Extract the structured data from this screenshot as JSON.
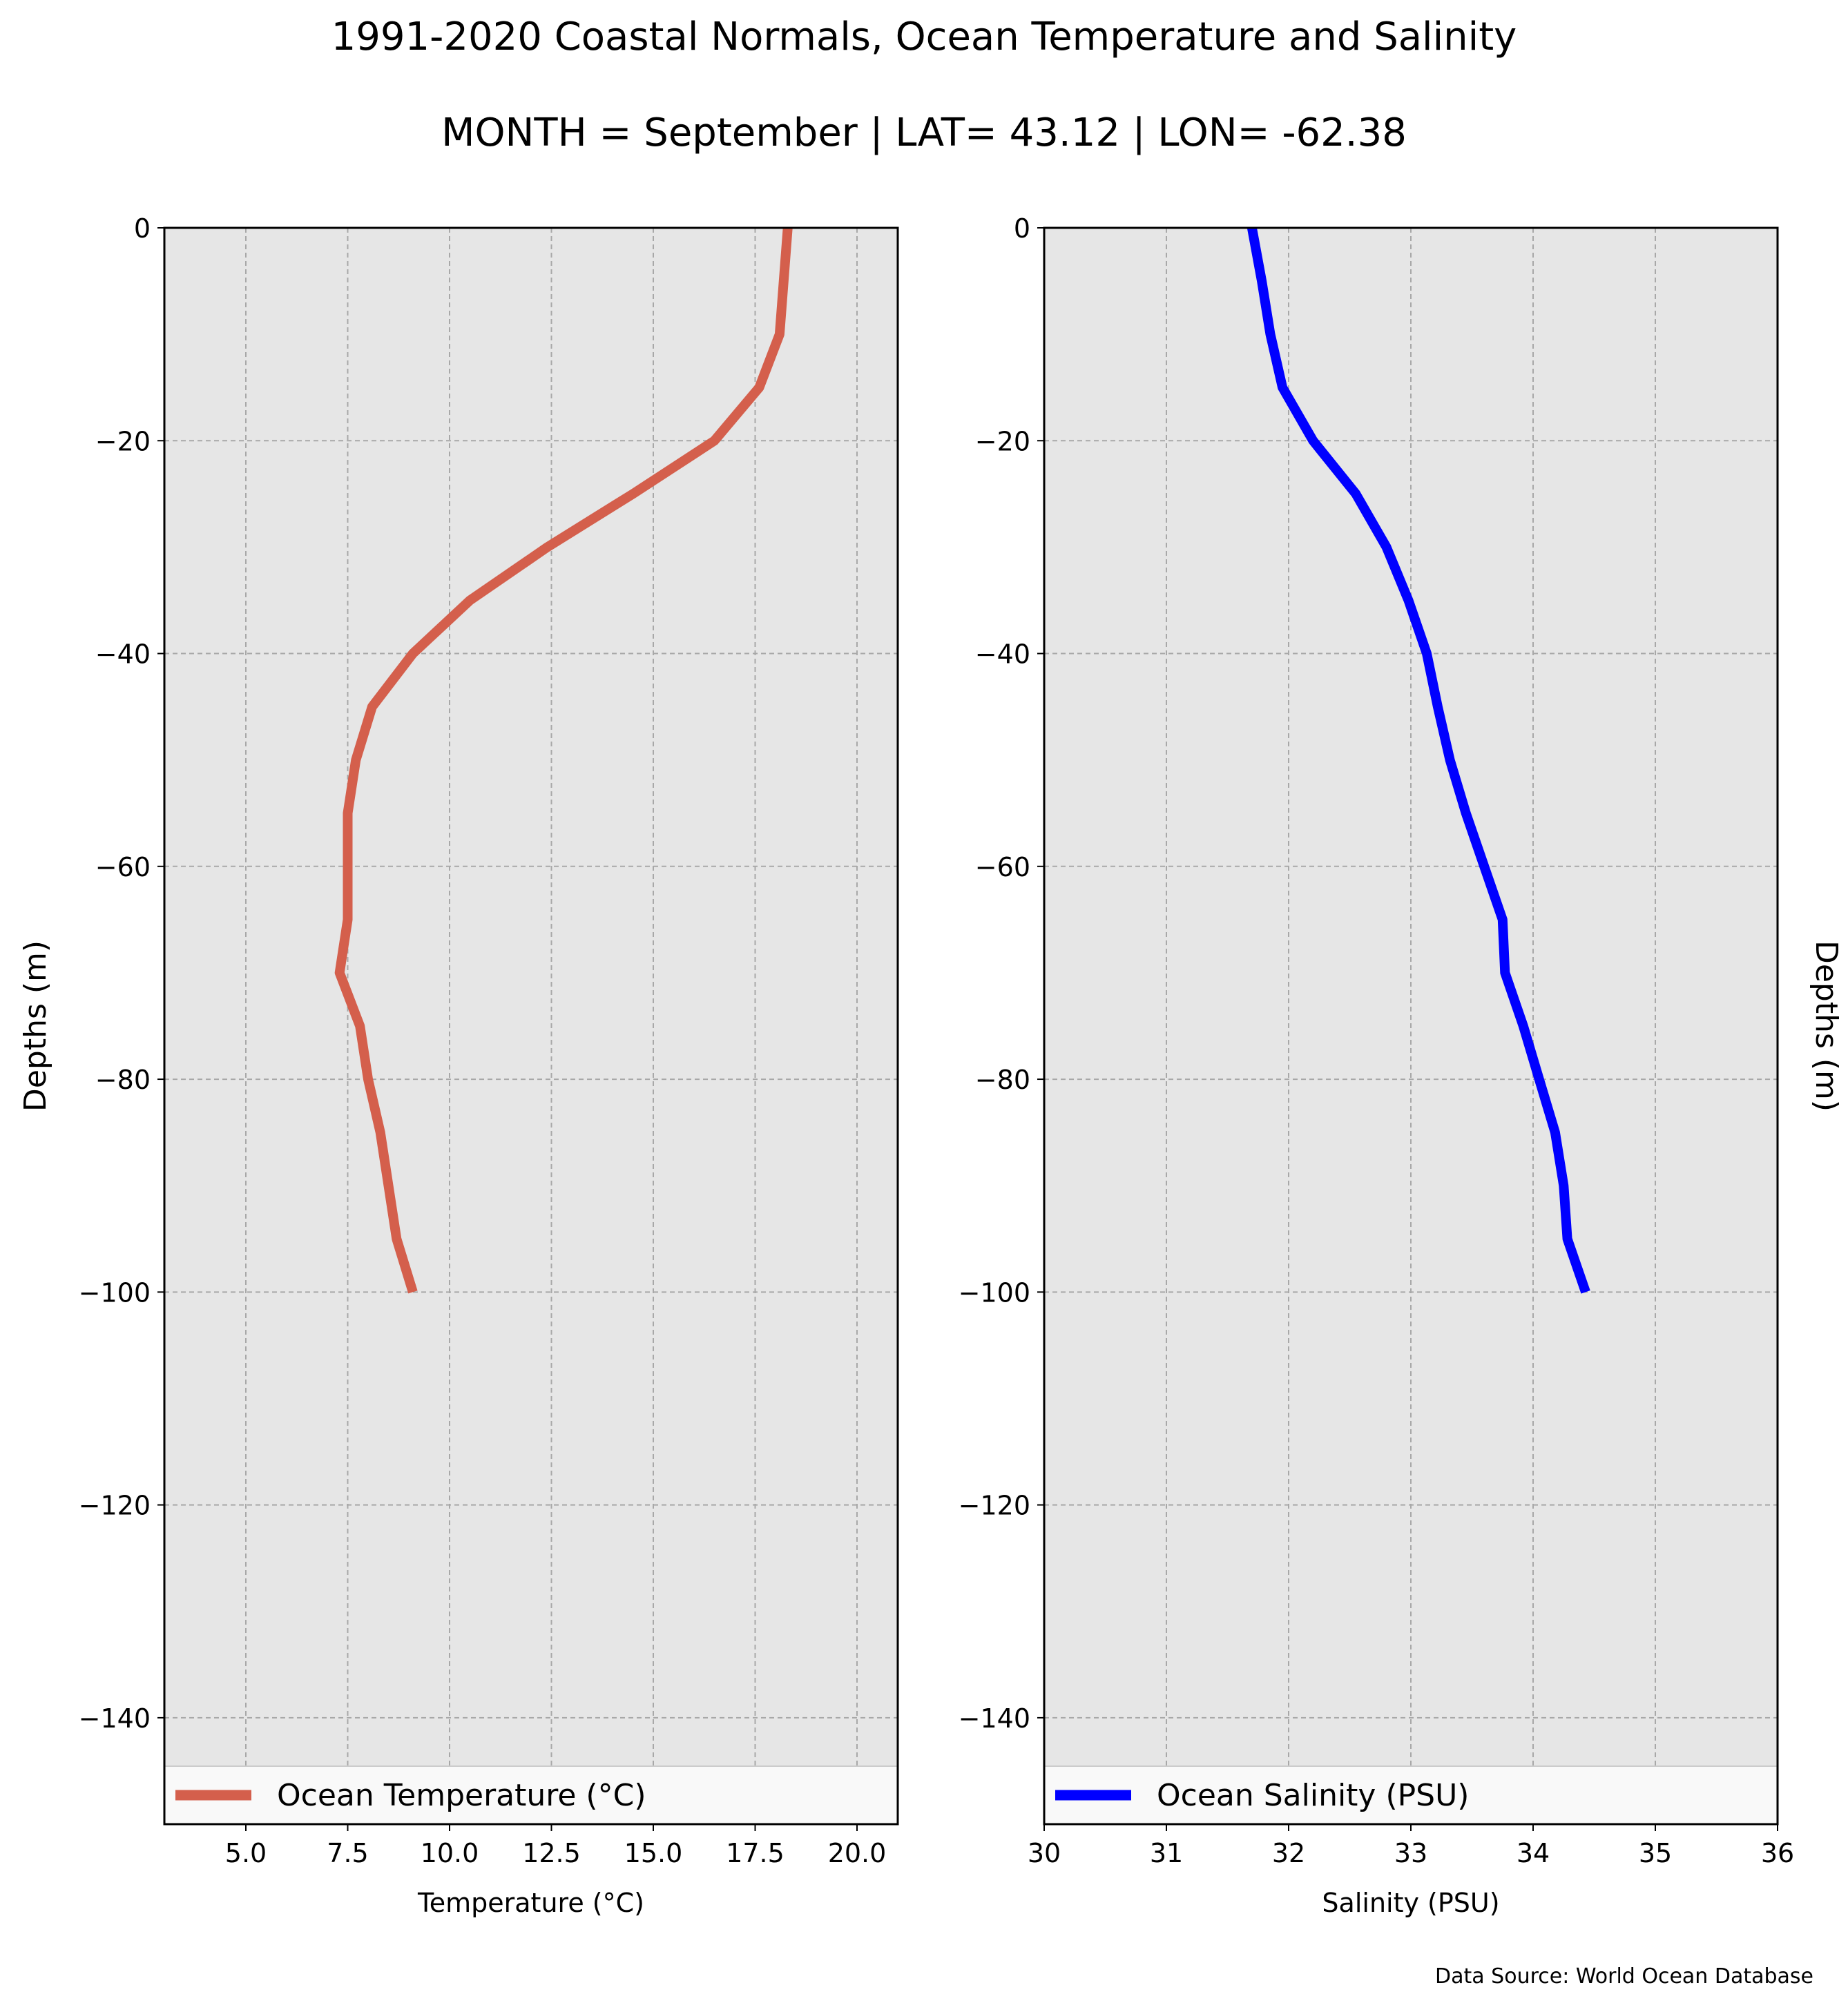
{
  "figure": {
    "title": "1991-2020 Coastal Normals, Ocean Temperature and Salinity",
    "subtitle": "MONTH = September | LAT= 43.12 | LON= -62.38",
    "source": "Data Source: World Ocean Database"
  },
  "chart_data": [
    {
      "type": "line",
      "xlabel": "Temperature (°C)",
      "ylabel": "Depths (m)",
      "xlim": [
        3.0,
        21.0
      ],
      "ylim": [
        -150,
        0
      ],
      "xticks": [
        5.0,
        7.5,
        10.0,
        12.5,
        15.0,
        17.5,
        20.0
      ],
      "xtick_labels": [
        "5.0",
        "7.5",
        "10.0",
        "12.5",
        "15.0",
        "17.5",
        "20.0"
      ],
      "yticks": [
        0,
        -20,
        -40,
        -60,
        -80,
        -100,
        -120,
        -140
      ],
      "ytick_labels": [
        "0",
        "−20",
        "−40",
        "−60",
        "−80",
        "−100",
        "−120",
        "−140"
      ],
      "grid": true,
      "legend_position": "bottom",
      "series": [
        {
          "name": "Ocean Temperature (°C)",
          "color": "#d45f4c",
          "x": [
            18.3,
            18.1,
            17.6,
            16.5,
            14.5,
            12.4,
            10.5,
            9.1,
            8.1,
            7.7,
            7.5,
            7.5,
            7.5,
            7.3,
            7.8,
            8.0,
            8.3,
            8.5,
            8.7,
            9.1
          ],
          "y": [
            0,
            -10,
            -15,
            -20,
            -25,
            -30,
            -35,
            -40,
            -45,
            -50,
            -55,
            -60,
            -65,
            -70,
            -75,
            -80,
            -85,
            -90,
            -95,
            -100
          ]
        }
      ]
    },
    {
      "type": "line",
      "xlabel": "Salinity (PSU)",
      "ylabel": "Depths (m)",
      "xlim": [
        30,
        36
      ],
      "ylim": [
        -150,
        0
      ],
      "xticks": [
        30,
        31,
        32,
        33,
        34,
        35,
        36
      ],
      "xtick_labels": [
        "30",
        "31",
        "32",
        "33",
        "34",
        "35",
        "36"
      ],
      "yticks": [
        0,
        -20,
        -40,
        -60,
        -80,
        -100,
        -120,
        -140
      ],
      "ytick_labels": [
        "0",
        "−20",
        "−40",
        "−60",
        "−80",
        "−100",
        "−120",
        "−140"
      ],
      "grid": true,
      "legend_position": "bottom",
      "series": [
        {
          "name": "Ocean Salinity (PSU)",
          "color": "#0000ff",
          "x": [
            31.7,
            31.78,
            31.85,
            31.95,
            32.2,
            32.55,
            32.8,
            32.98,
            33.13,
            33.22,
            33.32,
            33.45,
            33.6,
            33.75,
            33.77,
            33.92,
            34.05,
            34.18,
            34.25,
            34.28,
            34.43
          ],
          "y": [
            0,
            -5,
            -10,
            -15,
            -20,
            -25,
            -30,
            -35,
            -40,
            -45,
            -50,
            -55,
            -60,
            -65,
            -70,
            -75,
            -80,
            -85,
            -90,
            -95,
            -100
          ]
        }
      ]
    }
  ]
}
